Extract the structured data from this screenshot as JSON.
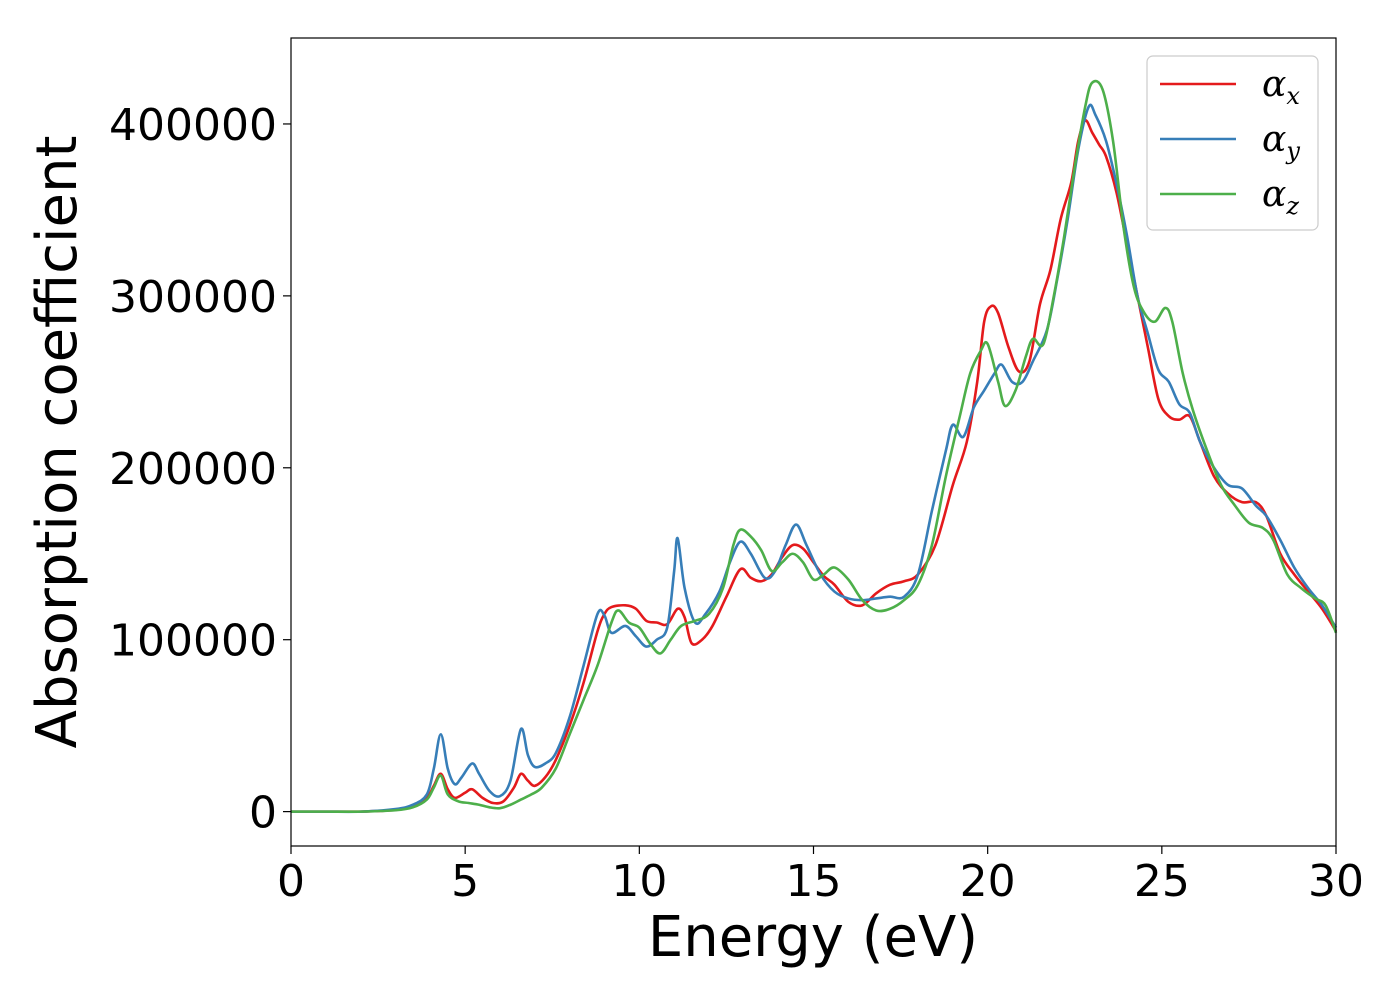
{
  "chart_data": {
    "type": "line",
    "xlabel": "Energy (eV)",
    "ylabel": "Absorption coefficient",
    "xlim": [
      0,
      30
    ],
    "ylim": [
      -20000,
      450000
    ],
    "xticks": [
      0,
      5,
      10,
      15,
      20,
      25,
      30
    ],
    "xtick_labels": [
      "0",
      "5",
      "10",
      "15",
      "20",
      "25",
      "30"
    ],
    "yticks": [
      0,
      100000,
      200000,
      300000,
      400000
    ],
    "ytick_labels": [
      "0",
      "100000",
      "200000",
      "300000",
      "400000"
    ],
    "grid": false,
    "legend_position": "top-right",
    "series": [
      {
        "name": "α",
        "subscript": "x",
        "color": "#e41a1c",
        "points": [
          [
            0,
            0
          ],
          [
            1,
            0
          ],
          [
            2,
            0
          ],
          [
            3,
            1000
          ],
          [
            3.5,
            3000
          ],
          [
            3.9,
            8000
          ],
          [
            4.1,
            15000
          ],
          [
            4.3,
            22000
          ],
          [
            4.5,
            13000
          ],
          [
            4.7,
            8000
          ],
          [
            5.0,
            11000
          ],
          [
            5.2,
            13000
          ],
          [
            5.5,
            8000
          ],
          [
            5.8,
            5000
          ],
          [
            6.1,
            6000
          ],
          [
            6.4,
            14000
          ],
          [
            6.6,
            22000
          ],
          [
            6.8,
            18000
          ],
          [
            7.0,
            15000
          ],
          [
            7.3,
            20000
          ],
          [
            7.6,
            30000
          ],
          [
            8.0,
            50000
          ],
          [
            8.4,
            75000
          ],
          [
            8.8,
            105000
          ],
          [
            9.0,
            115000
          ],
          [
            9.2,
            119000
          ],
          [
            9.6,
            120000
          ],
          [
            9.9,
            118000
          ],
          [
            10.2,
            111000
          ],
          [
            10.5,
            110000
          ],
          [
            10.8,
            109000
          ],
          [
            11.1,
            118000
          ],
          [
            11.3,
            113000
          ],
          [
            11.5,
            98000
          ],
          [
            11.8,
            100000
          ],
          [
            12.1,
            108000
          ],
          [
            12.5,
            125000
          ],
          [
            12.9,
            141000
          ],
          [
            13.2,
            136000
          ],
          [
            13.5,
            134000
          ],
          [
            13.8,
            138000
          ],
          [
            14.1,
            148000
          ],
          [
            14.4,
            155000
          ],
          [
            14.7,
            153000
          ],
          [
            15.0,
            145000
          ],
          [
            15.3,
            137000
          ],
          [
            15.6,
            132000
          ],
          [
            16.0,
            122000
          ],
          [
            16.4,
            120000
          ],
          [
            16.8,
            127000
          ],
          [
            17.2,
            132000
          ],
          [
            17.6,
            134000
          ],
          [
            18.0,
            138000
          ],
          [
            18.5,
            155000
          ],
          [
            19.0,
            190000
          ],
          [
            19.4,
            215000
          ],
          [
            19.7,
            250000
          ],
          [
            19.9,
            285000
          ],
          [
            20.1,
            294000
          ],
          [
            20.3,
            290000
          ],
          [
            20.6,
            270000
          ],
          [
            20.9,
            256000
          ],
          [
            21.2,
            262000
          ],
          [
            21.5,
            295000
          ],
          [
            21.8,
            315000
          ],
          [
            22.1,
            345000
          ],
          [
            22.4,
            366000
          ],
          [
            22.6,
            390000
          ],
          [
            22.8,
            402000
          ],
          [
            23.0,
            395000
          ],
          [
            23.2,
            388000
          ],
          [
            23.4,
            381000
          ],
          [
            23.7,
            360000
          ],
          [
            24.0,
            330000
          ],
          [
            24.3,
            300000
          ],
          [
            24.6,
            270000
          ],
          [
            24.9,
            240000
          ],
          [
            25.2,
            230000
          ],
          [
            25.5,
            228000
          ],
          [
            25.8,
            230000
          ],
          [
            26.1,
            215000
          ],
          [
            26.5,
            195000
          ],
          [
            26.9,
            185000
          ],
          [
            27.3,
            180000
          ],
          [
            27.7,
            180000
          ],
          [
            28.0,
            172000
          ],
          [
            28.4,
            150000
          ],
          [
            28.8,
            138000
          ],
          [
            29.2,
            128000
          ],
          [
            29.6,
            118000
          ],
          [
            30,
            105000
          ]
        ]
      },
      {
        "name": "α",
        "subscript": "y",
        "color": "#377eb8",
        "points": [
          [
            0,
            0
          ],
          [
            1,
            0
          ],
          [
            2,
            0
          ],
          [
            3,
            1500
          ],
          [
            3.5,
            4000
          ],
          [
            3.9,
            10000
          ],
          [
            4.1,
            25000
          ],
          [
            4.3,
            45000
          ],
          [
            4.5,
            25000
          ],
          [
            4.7,
            16000
          ],
          [
            4.9,
            20000
          ],
          [
            5.2,
            28000
          ],
          [
            5.4,
            22000
          ],
          [
            5.7,
            12000
          ],
          [
            6.0,
            9000
          ],
          [
            6.3,
            18000
          ],
          [
            6.6,
            48000
          ],
          [
            6.8,
            33000
          ],
          [
            7.0,
            26000
          ],
          [
            7.3,
            28000
          ],
          [
            7.6,
            34000
          ],
          [
            8.0,
            55000
          ],
          [
            8.4,
            85000
          ],
          [
            8.8,
            115000
          ],
          [
            9.0,
            114000
          ],
          [
            9.2,
            104000
          ],
          [
            9.6,
            108000
          ],
          [
            9.9,
            102000
          ],
          [
            10.2,
            96000
          ],
          [
            10.5,
            100000
          ],
          [
            10.8,
            107000
          ],
          [
            11.0,
            140000
          ],
          [
            11.1,
            159000
          ],
          [
            11.3,
            130000
          ],
          [
            11.6,
            110000
          ],
          [
            11.9,
            115000
          ],
          [
            12.3,
            128000
          ],
          [
            12.6,
            145000
          ],
          [
            12.9,
            157000
          ],
          [
            13.2,
            150000
          ],
          [
            13.6,
            136000
          ],
          [
            13.9,
            140000
          ],
          [
            14.2,
            155000
          ],
          [
            14.5,
            167000
          ],
          [
            14.8,
            155000
          ],
          [
            15.2,
            138000
          ],
          [
            15.6,
            128000
          ],
          [
            16.0,
            124000
          ],
          [
            16.4,
            123000
          ],
          [
            16.8,
            124000
          ],
          [
            17.2,
            125000
          ],
          [
            17.6,
            125000
          ],
          [
            18.0,
            138000
          ],
          [
            18.4,
            175000
          ],
          [
            18.8,
            210000
          ],
          [
            19.0,
            225000
          ],
          [
            19.3,
            218000
          ],
          [
            19.6,
            235000
          ],
          [
            19.9,
            245000
          ],
          [
            20.2,
            255000
          ],
          [
            20.4,
            260000
          ],
          [
            20.7,
            250000
          ],
          [
            21.0,
            250000
          ],
          [
            21.3,
            262000
          ],
          [
            21.7,
            280000
          ],
          [
            22.0,
            310000
          ],
          [
            22.3,
            345000
          ],
          [
            22.6,
            385000
          ],
          [
            22.9,
            410000
          ],
          [
            23.1,
            405000
          ],
          [
            23.4,
            390000
          ],
          [
            23.7,
            365000
          ],
          [
            24.0,
            335000
          ],
          [
            24.3,
            300000
          ],
          [
            24.6,
            278000
          ],
          [
            24.9,
            257000
          ],
          [
            25.2,
            250000
          ],
          [
            25.5,
            237000
          ],
          [
            25.8,
            232000
          ],
          [
            26.1,
            215000
          ],
          [
            26.5,
            200000
          ],
          [
            26.9,
            190000
          ],
          [
            27.3,
            188000
          ],
          [
            27.7,
            178000
          ],
          [
            28.0,
            172000
          ],
          [
            28.4,
            158000
          ],
          [
            28.8,
            142000
          ],
          [
            29.2,
            130000
          ],
          [
            29.6,
            120000
          ],
          [
            30,
            107000
          ]
        ]
      },
      {
        "name": "α",
        "subscript": "z",
        "color": "#4daf4a",
        "points": [
          [
            0,
            0
          ],
          [
            1,
            0
          ],
          [
            2,
            0
          ],
          [
            3,
            800
          ],
          [
            3.5,
            2500
          ],
          [
            3.9,
            7000
          ],
          [
            4.1,
            14000
          ],
          [
            4.3,
            21000
          ],
          [
            4.5,
            10000
          ],
          [
            4.8,
            6000
          ],
          [
            5.1,
            5000
          ],
          [
            5.4,
            4000
          ],
          [
            5.7,
            2500
          ],
          [
            6.0,
            2000
          ],
          [
            6.3,
            4000
          ],
          [
            6.6,
            7000
          ],
          [
            6.9,
            10000
          ],
          [
            7.2,
            14000
          ],
          [
            7.6,
            25000
          ],
          [
            8.0,
            45000
          ],
          [
            8.4,
            65000
          ],
          [
            8.8,
            85000
          ],
          [
            9.2,
            110000
          ],
          [
            9.4,
            117000
          ],
          [
            9.7,
            110000
          ],
          [
            10.0,
            107000
          ],
          [
            10.3,
            98000
          ],
          [
            10.6,
            92000
          ],
          [
            10.9,
            100000
          ],
          [
            11.2,
            108000
          ],
          [
            11.6,
            111000
          ],
          [
            12.0,
            115000
          ],
          [
            12.4,
            130000
          ],
          [
            12.7,
            155000
          ],
          [
            12.9,
            164000
          ],
          [
            13.2,
            160000
          ],
          [
            13.5,
            152000
          ],
          [
            13.8,
            140000
          ],
          [
            14.1,
            145000
          ],
          [
            14.4,
            150000
          ],
          [
            14.7,
            145000
          ],
          [
            15.0,
            135000
          ],
          [
            15.3,
            138000
          ],
          [
            15.6,
            142000
          ],
          [
            16.0,
            135000
          ],
          [
            16.4,
            123000
          ],
          [
            16.8,
            117000
          ],
          [
            17.2,
            118000
          ],
          [
            17.6,
            123000
          ],
          [
            18.0,
            132000
          ],
          [
            18.4,
            155000
          ],
          [
            18.8,
            195000
          ],
          [
            19.2,
            230000
          ],
          [
            19.5,
            255000
          ],
          [
            19.8,
            268000
          ],
          [
            20.0,
            272000
          ],
          [
            20.3,
            250000
          ],
          [
            20.5,
            236000
          ],
          [
            20.8,
            245000
          ],
          [
            21.1,
            265000
          ],
          [
            21.3,
            275000
          ],
          [
            21.6,
            272000
          ],
          [
            21.9,
            300000
          ],
          [
            22.2,
            335000
          ],
          [
            22.5,
            375000
          ],
          [
            22.8,
            410000
          ],
          [
            23.0,
            424000
          ],
          [
            23.3,
            420000
          ],
          [
            23.6,
            390000
          ],
          [
            23.9,
            340000
          ],
          [
            24.2,
            305000
          ],
          [
            24.5,
            290000
          ],
          [
            24.8,
            285000
          ],
          [
            25.1,
            293000
          ],
          [
            25.3,
            285000
          ],
          [
            25.6,
            255000
          ],
          [
            25.9,
            233000
          ],
          [
            26.3,
            210000
          ],
          [
            26.7,
            190000
          ],
          [
            27.1,
            178000
          ],
          [
            27.5,
            168000
          ],
          [
            27.9,
            165000
          ],
          [
            28.2,
            158000
          ],
          [
            28.6,
            138000
          ],
          [
            29.0,
            130000
          ],
          [
            29.4,
            124000
          ],
          [
            29.7,
            120000
          ],
          [
            30,
            104000
          ]
        ]
      }
    ]
  }
}
